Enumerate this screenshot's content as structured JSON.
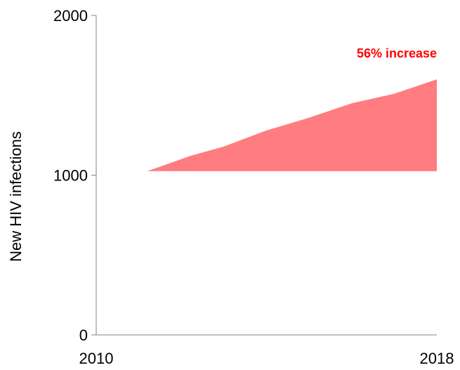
{
  "chart_data": {
    "type": "area",
    "ylabel": "New HIV infections",
    "annotation": "56% increase",
    "x_ticks": [
      "2010",
      "2018"
    ],
    "y_ticks": [
      "0",
      "1000",
      "2000"
    ],
    "xlim": [
      2010,
      2018
    ],
    "ylim": [
      0,
      2000
    ],
    "baseline": 1025,
    "series": [
      {
        "x": [
          2011.2,
          2012.2,
          2013.0,
          2014.0,
          2015.0,
          2016.0,
          2017.0,
          2018.0
        ],
        "values": [
          1025,
          1120,
          1180,
          1280,
          1360,
          1450,
          1510,
          1600
        ]
      }
    ],
    "colors": {
      "fill": "#ff7c80",
      "annotation": "#ff0000",
      "axis": "#808080",
      "text": "#000000"
    },
    "grid": false
  }
}
